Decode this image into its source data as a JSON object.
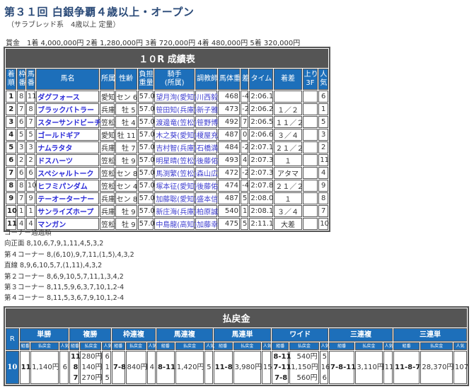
{
  "header": {
    "title": "第３１回 白銀争覇４歳以上・オープン",
    "subtitle": "（サラブレッド系　4歳以上 定量）",
    "prize": "賞金　1着 4,000,000円  2着 1,280,000円  3着 720,000円  4着 480,000円  5着 320,000円"
  },
  "results": {
    "caption": "１０R 成績表",
    "columns": [
      "着\n順",
      "枠\n番",
      "馬\n番",
      "馬名",
      "所属",
      "性齢",
      "負担\n重量",
      "騎手\n(所属)",
      "調教師",
      "馬体重",
      "差",
      "タイム",
      "着差",
      "上り\n3F",
      "人\n気"
    ],
    "rows": [
      [
        "1",
        "8",
        "11",
        "ダグフォース",
        "愛知",
        "セン 6",
        "57.0",
        "望月洵(愛知)",
        "川西毅",
        "468",
        "-4",
        "2:06.1",
        "",
        "",
        "6"
      ],
      [
        "2",
        "7",
        "8",
        "ブラックバトラー",
        "兵庫",
        "牡 5",
        "57.0",
        "笹田知(兵庫)",
        "新子雅",
        "473",
        "-2",
        "2:06.2",
        "１／２",
        "",
        "1"
      ],
      [
        "3",
        "6",
        "7",
        "スターサンドビーチ",
        "笠松",
        "牡 4",
        "57.0",
        "渡邊竜(笠松)",
        "笹野博",
        "492",
        "7",
        "2:06.5",
        "１１／２",
        "",
        "5"
      ],
      [
        "4",
        "5",
        "5",
        "ゴールドギア",
        "愛知",
        "牡 11",
        "57.0",
        "木之葵(愛知)",
        "榎屋充",
        "487",
        "0",
        "2:06.6",
        "３／４",
        "",
        "3"
      ],
      [
        "5",
        "3",
        "3",
        "ナムラタタ",
        "兵庫",
        "牡 7",
        "57.0",
        "吉村智(兵庫)",
        "石橋満",
        "484",
        "-2",
        "2:07.1",
        "２１／２",
        "",
        "2"
      ],
      [
        "6",
        "2",
        "2",
        "ドスハーツ",
        "笠松",
        "牡 9",
        "57.0",
        "明星晴(笠松)",
        "後藤佑",
        "493",
        "4",
        "2:07.3",
        "１",
        "",
        "11"
      ],
      [
        "7",
        "6",
        "6",
        "スペシャルトーク",
        "笠松",
        "セン 8",
        "57.0",
        "馬渕繁(笠松)",
        "森山広",
        "472",
        "-2",
        "2:07.3",
        "アタマ",
        "",
        "4"
      ],
      [
        "8",
        "8",
        "10",
        "ヒフミパンダム",
        "笠松",
        "セン 4",
        "57.0",
        "塚本征(愛知)",
        "後藤佑",
        "474",
        "-4",
        "2:07.8",
        "２１／２",
        "",
        "9"
      ],
      [
        "9",
        "7",
        "9",
        "テーオーターナー",
        "兵庫",
        "セン 8",
        "57.0",
        "加藤聡(愛知)",
        "盛本信",
        "487",
        "5",
        "2:08.0",
        "１",
        "",
        "8"
      ],
      [
        "10",
        "1",
        "1",
        "サンライズホープ",
        "兵庫",
        "牡 9",
        "57.0",
        "新庄海(兵庫)",
        "柏原誠",
        "540",
        "1",
        "2:08.1",
        "３／４",
        "",
        "7"
      ],
      [
        "11",
        "4",
        "4",
        "マンガン",
        "笠松",
        "牡 9",
        "57.0",
        "中島龍(高知)",
        "加藤幸",
        "475",
        "5",
        "2:11.1",
        "大差",
        "",
        "10"
      ]
    ]
  },
  "corners": [
    "コーナー通過順",
    "向正面 8,10,6,7,9,1,11,4,5,3,2",
    "第４コーナー 8,(6,10),9,7,11,(1,5),4,3,2",
    "直線 8,9,6,10,5,7,(1,11),4,3,2",
    "第２コーナー 8,6,9,10,5,7,11,1,3,4,2",
    "第３コーナー 8,11,5,9,6,3,7,10,1,2-4",
    "第４コーナー 8,11,5,3,6,7,9,10,1,2-4"
  ],
  "payout": {
    "caption": "払戻金",
    "r_label": "R",
    "race": "10",
    "sub": [
      "組番",
      "払戻金",
      "人気"
    ],
    "bets": [
      {
        "name": "単勝",
        "combo": [
          "11"
        ],
        "pay": [
          "1,140円"
        ],
        "pop": [
          "6"
        ]
      },
      {
        "name": "複勝",
        "combo": [
          "11",
          "8",
          "7"
        ],
        "pay": [
          "280円",
          "140円",
          "270円"
        ],
        "pop": [
          "6",
          "1",
          "5"
        ]
      },
      {
        "name": "枠連複",
        "combo": [
          "7-8"
        ],
        "pay": [
          "840円"
        ],
        "pop": [
          "4"
        ]
      },
      {
        "name": "馬連複",
        "combo": [
          "8-11"
        ],
        "pay": [
          "1,420円"
        ],
        "pop": [
          "5"
        ]
      },
      {
        "name": "馬連単",
        "combo": [
          "11-8"
        ],
        "pay": [
          "3,980円"
        ],
        "pop": [
          "15"
        ]
      },
      {
        "name": "ワイド",
        "combo": [
          "8-11",
          "7-11",
          "7-8"
        ],
        "pay": [
          "540円",
          "1,150円",
          "560円"
        ],
        "pop": [
          "5",
          "16",
          "6"
        ]
      },
      {
        "name": "三連複",
        "combo": [
          "7-8-11"
        ],
        "pay": [
          "3,110円"
        ],
        "pop": [
          "11"
        ]
      },
      {
        "name": "三連単",
        "combo": [
          "11-8-7"
        ],
        "pay": [
          "28,370円"
        ],
        "pop": [
          "107"
        ]
      }
    ]
  }
}
